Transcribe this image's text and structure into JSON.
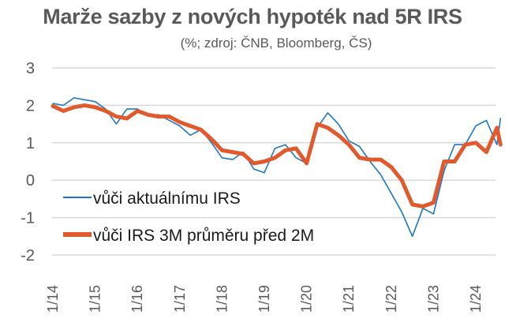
{
  "title": "Marže sazby z nových hypoték nad 5R IRS",
  "subtitle": "(%; zdroj: ČNB, Bloomberg, ČS)",
  "colors": {
    "series1": "#1f77c4",
    "series2": "#e15a2e",
    "grid": "#d9d9d9",
    "text": "#595959"
  },
  "chart_data": {
    "type": "line",
    "title": "Marže sazby z nových hypoték nad 5R IRS",
    "subtitle": "(%; zdroj: ČNB, Bloomberg, ČS)",
    "xlabel": "",
    "ylabel": "",
    "ylim": [
      -2,
      3
    ],
    "yticks": [
      3,
      2,
      1,
      0,
      -1,
      -2
    ],
    "xticks": [
      "1/14",
      "1/15",
      "1/16",
      "1/17",
      "1/18",
      "1/19",
      "1/20",
      "1/21",
      "1/22",
      "1/23",
      "1/24"
    ],
    "grid": true,
    "legend_position": "inside-bottom-left",
    "x": [
      "2014-01",
      "2014-04",
      "2014-07",
      "2014-10",
      "2015-01",
      "2015-04",
      "2015-07",
      "2015-10",
      "2016-01",
      "2016-04",
      "2016-07",
      "2016-10",
      "2017-01",
      "2017-04",
      "2017-07",
      "2017-10",
      "2018-01",
      "2018-04",
      "2018-07",
      "2018-10",
      "2019-01",
      "2019-04",
      "2019-07",
      "2019-10",
      "2020-01",
      "2020-04",
      "2020-07",
      "2020-10",
      "2021-01",
      "2021-04",
      "2021-07",
      "2021-10",
      "2022-01",
      "2022-04",
      "2022-07",
      "2022-10",
      "2023-01",
      "2023-04",
      "2023-07",
      "2023-10",
      "2024-01",
      "2024-04",
      "2024-07",
      "2024-08"
    ],
    "series": [
      {
        "name": "vůči aktuálnímu IRS",
        "values": [
          2.05,
          2.0,
          2.2,
          2.15,
          2.1,
          1.9,
          1.5,
          1.9,
          1.9,
          1.75,
          1.75,
          1.6,
          1.45,
          1.2,
          1.35,
          1.0,
          0.6,
          0.55,
          0.75,
          0.3,
          0.2,
          0.85,
          0.95,
          0.6,
          0.45,
          1.4,
          1.8,
          1.5,
          1.05,
          0.9,
          0.5,
          0.15,
          -0.35,
          -0.85,
          -1.5,
          -0.75,
          -0.9,
          0.25,
          0.95,
          0.95,
          1.45,
          1.6,
          0.95,
          1.65
        ]
      },
      {
        "name": "vůči IRS 3M průměru před 2M",
        "values": [
          1.98,
          1.85,
          1.95,
          2.0,
          1.95,
          1.85,
          1.7,
          1.65,
          1.85,
          1.75,
          1.7,
          1.7,
          1.55,
          1.45,
          1.35,
          1.1,
          0.8,
          0.75,
          0.7,
          0.45,
          0.5,
          0.6,
          0.8,
          0.85,
          0.45,
          1.5,
          1.4,
          1.2,
          0.95,
          0.6,
          0.55,
          0.55,
          0.35,
          0.0,
          -0.65,
          -0.7,
          -0.6,
          0.5,
          0.5,
          0.95,
          1.0,
          0.75,
          1.4,
          0.95
        ]
      }
    ]
  },
  "legend": {
    "items": [
      {
        "label": "vůči aktuálnímu IRS"
      },
      {
        "label": "vůči IRS 3M průměru před 2M"
      }
    ]
  }
}
